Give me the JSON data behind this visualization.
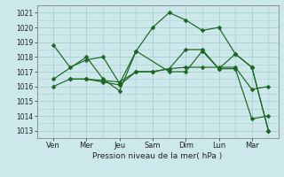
{
  "background_color": "#cce8ea",
  "grid_color": "#aacdd0",
  "line_color": "#1a6620",
  "marker_color": "#1a6620",
  "xlabel": "Pression niveau de la mer( hPa )",
  "ylim": [
    1012.5,
    1021.5
  ],
  "yticks": [
    1013,
    1014,
    1015,
    1016,
    1017,
    1018,
    1019,
    1020,
    1021
  ],
  "day_labels": [
    "Ven",
    "Mer",
    "Jeu",
    "Sam",
    "Dim",
    "Lun",
    "Mar"
  ],
  "day_positions": [
    1,
    2,
    3,
    4,
    5,
    6,
    7
  ],
  "xlim": [
    0.5,
    7.8
  ],
  "series": [
    {
      "x": [
        1.0,
        1.5,
        2.0,
        2.5,
        3.0,
        3.5,
        4.0,
        4.5,
        5.0,
        5.5,
        6.0,
        6.5,
        7.0,
        7.5
      ],
      "y": [
        1018.8,
        1017.3,
        1017.8,
        1018.0,
        1016.2,
        1018.4,
        1020.0,
        1021.0,
        1020.5,
        1019.8,
        1020.0,
        1018.2,
        1017.3,
        1013.0
      ]
    },
    {
      "x": [
        1.0,
        1.5,
        2.0,
        2.5,
        3.0,
        3.5,
        4.0,
        4.5,
        5.0,
        5.5,
        6.0,
        6.5,
        7.0,
        7.5
      ],
      "y": [
        1016.0,
        1016.5,
        1016.5,
        1016.4,
        1016.3,
        1017.0,
        1017.0,
        1017.2,
        1018.5,
        1018.5,
        1017.2,
        1018.2,
        1017.3,
        1013.0
      ]
    },
    {
      "x": [
        1.5,
        2.0,
        2.5,
        3.0,
        3.5,
        4.0,
        4.5,
        5.0,
        5.5,
        6.0,
        6.5,
        7.0,
        7.5
      ],
      "y": [
        1016.5,
        1016.5,
        1016.3,
        1016.1,
        1017.0,
        1017.0,
        1017.2,
        1017.3,
        1017.3,
        1017.3,
        1017.3,
        1015.8,
        1016.0
      ]
    },
    {
      "x": [
        1.0,
        2.0,
        2.5,
        3.0,
        3.5,
        4.5,
        5.0,
        5.5,
        6.0,
        6.5,
        7.0,
        7.5
      ],
      "y": [
        1016.5,
        1018.0,
        1016.5,
        1015.7,
        1018.4,
        1017.0,
        1017.0,
        1018.4,
        1017.2,
        1017.2,
        1013.8,
        1014.0
      ]
    }
  ]
}
